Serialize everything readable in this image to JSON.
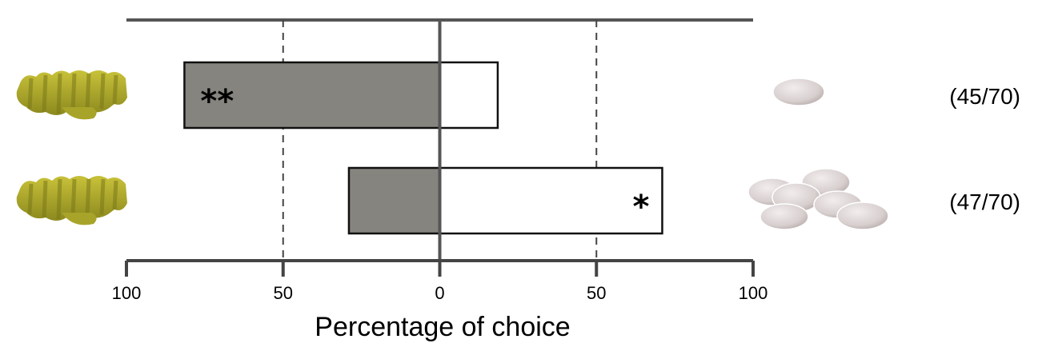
{
  "chart_data": {
    "type": "bar",
    "orientation": "horizontal-diverging",
    "xlabel": "Percentage of choice",
    "xlim": [
      -100,
      100
    ],
    "ticks": [
      {
        "value": -100,
        "label": "100"
      },
      {
        "value": -50,
        "label": "50"
      },
      {
        "value": 0,
        "label": "0"
      },
      {
        "value": 50,
        "label": "50"
      },
      {
        "value": 100,
        "label": "100"
      }
    ],
    "dashed_reference_lines": [
      -50,
      50
    ],
    "series": [
      {
        "side": "left",
        "fill_color": "#86847e"
      },
      {
        "side": "right",
        "fill_color": "#ffffff"
      }
    ],
    "rows": [
      {
        "left": 81.5,
        "right": 18.5,
        "significance": "**",
        "significance_side": "left",
        "ratio": "(45/70)",
        "right_item_count": 1
      },
      {
        "left": 29,
        "right": 71,
        "significance": "*",
        "significance_side": "right",
        "ratio": "(47/70)",
        "right_item_count": 6
      }
    ],
    "icons": {
      "left": "yellow-pasta-piece-icon",
      "right": "white-pebble-icon"
    }
  }
}
